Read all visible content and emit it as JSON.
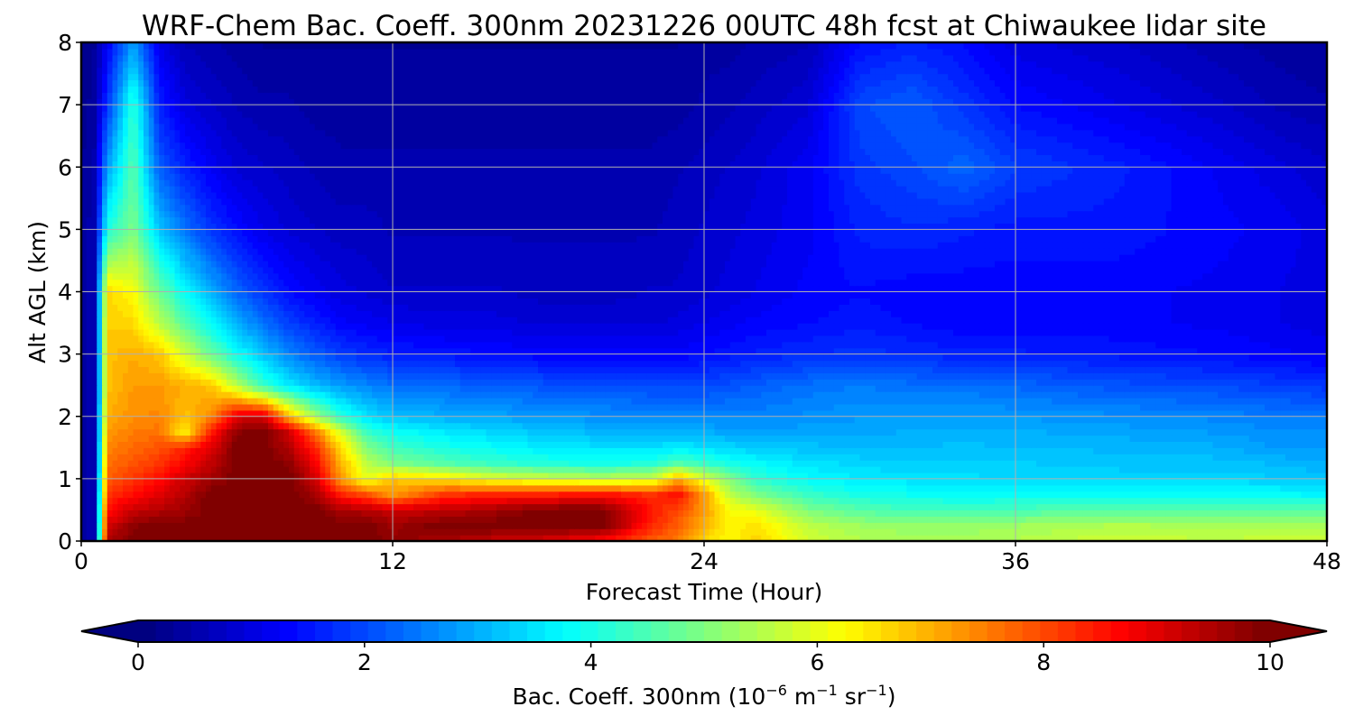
{
  "chart_data": {
    "type": "heatmap",
    "title": "WRF-Chem Bac. Coeff. 300nm  20231226 00UTC 48h fcst at Chiwaukee lidar site",
    "xlabel": "Forecast Time (Hour)",
    "ylabel": "Alt AGL (km)",
    "x_ticks": [
      0,
      12,
      24,
      36,
      48
    ],
    "y_ticks": [
      0,
      1,
      2,
      3,
      4,
      5,
      6,
      7,
      8
    ],
    "xlim": [
      0,
      48
    ],
    "ylim": [
      0,
      8
    ],
    "grid": true,
    "colorbar": {
      "label_main": "Bac. Coeff. 300nm  (10",
      "label_exp1": "−6",
      "label_mid": " m",
      "label_exp2": "−1",
      "label_mid2": " sr",
      "label_exp3": "−1",
      "label_end": ")",
      "ticks": [
        0,
        2,
        4,
        6,
        8,
        10
      ],
      "range": [
        0,
        10
      ],
      "extend": "both",
      "colormap": "jet",
      "orientation": "horizontal"
    },
    "x": [
      0,
      0.5,
      1,
      2,
      3,
      4,
      5,
      6,
      7,
      8,
      9,
      10,
      11,
      12,
      14,
      16,
      18,
      20,
      22,
      23,
      24,
      25,
      26,
      28,
      30,
      32,
      34,
      36,
      40,
      44,
      46,
      48
    ],
    "y": [
      0,
      0.25,
      0.5,
      0.75,
      1,
      1.25,
      1.5,
      1.75,
      2,
      2.5,
      3,
      3.5,
      4,
      5,
      6,
      7,
      8
    ],
    "z": [
      [
        0.3,
        0.6,
        9.5,
        10.0,
        10.0,
        10.0,
        10.0,
        10.0,
        10.0,
        10.0,
        10.0,
        10.0,
        10.0,
        9.8,
        9.5,
        9.2,
        9.0,
        8.6,
        7.8,
        7.5,
        6.6,
        6.2,
        6.7,
        5.8,
        5.5,
        5.4,
        5.4,
        5.5,
        5.8,
        5.6,
        5.8,
        5.8
      ],
      [
        0.3,
        0.6,
        9.0,
        9.8,
        10.0,
        10.0,
        10.0,
        10.0,
        10.0,
        10.0,
        10.0,
        10.0,
        10.0,
        9.6,
        10.0,
        10.0,
        10.0,
        10.0,
        8.3,
        7.8,
        7.0,
        6.3,
        6.5,
        5.6,
        5.3,
        5.2,
        5.2,
        5.3,
        5.5,
        5.4,
        5.4,
        5.4
      ],
      [
        0.3,
        0.6,
        8.6,
        9.2,
        9.4,
        9.6,
        10.0,
        10.0,
        10.0,
        10.0,
        10.0,
        9.5,
        9.4,
        9.2,
        9.3,
        9.6,
        10.0,
        10.0,
        8.5,
        8.0,
        7.2,
        6.2,
        6.0,
        5.0,
        4.6,
        4.4,
        4.4,
        4.5,
        4.6,
        4.6,
        4.6,
        4.6
      ],
      [
        0.3,
        0.6,
        8.2,
        8.6,
        9.0,
        9.4,
        10.0,
        10.0,
        10.0,
        10.0,
        9.6,
        8.4,
        8.0,
        7.2,
        8.2,
        8.4,
        8.4,
        8.6,
        8.2,
        8.6,
        7.2,
        5.6,
        5.0,
        4.3,
        4.0,
        3.9,
        3.8,
        3.8,
        3.8,
        3.8,
        3.8,
        3.7
      ],
      [
        0.3,
        0.6,
        7.8,
        8.2,
        8.6,
        9.2,
        9.6,
        10.0,
        10.0,
        10.0,
        9.2,
        7.2,
        6.0,
        6.8,
        6.5,
        6.0,
        5.8,
        5.6,
        5.8,
        7.0,
        6.0,
        5.0,
        4.2,
        3.8,
        3.6,
        3.5,
        3.5,
        3.4,
        3.4,
        3.4,
        3.3,
        3.2
      ],
      [
        0.3,
        0.6,
        7.6,
        7.9,
        8.2,
        8.7,
        9.3,
        10.0,
        10.0,
        9.8,
        8.8,
        7.0,
        5.6,
        5.0,
        4.6,
        4.3,
        4.1,
        4.0,
        4.1,
        4.6,
        4.3,
        4.0,
        3.8,
        3.5,
        3.4,
        3.3,
        3.3,
        3.3,
        3.2,
        3.2,
        3.1,
        3.0
      ],
      [
        0.3,
        0.6,
        7.4,
        7.7,
        7.9,
        8.4,
        9.0,
        10.0,
        10.0,
        9.4,
        8.4,
        6.6,
        5.0,
        4.4,
        4.0,
        3.8,
        3.6,
        3.5,
        3.5,
        3.6,
        3.5,
        3.4,
        3.3,
        3.2,
        3.1,
        3.1,
        3.2,
        3.1,
        3.1,
        3.0,
        2.8,
        2.8
      ],
      [
        0.3,
        0.6,
        7.2,
        7.5,
        7.6,
        6.3,
        8.4,
        9.8,
        10.0,
        9.2,
        7.6,
        5.8,
        4.3,
        3.9,
        3.6,
        3.4,
        3.2,
        3.1,
        3.0,
        3.0,
        3.0,
        2.9,
        2.9,
        2.9,
        2.9,
        3.0,
        3.0,
        3.0,
        2.9,
        2.8,
        2.7,
        2.7
      ],
      [
        0.3,
        0.6,
        7.0,
        7.3,
        7.4,
        6.8,
        7.4,
        9.0,
        9.2,
        7.0,
        5.4,
        4.2,
        3.5,
        3.2,
        3.0,
        2.9,
        2.8,
        2.7,
        2.6,
        2.6,
        2.6,
        2.6,
        2.6,
        2.7,
        2.8,
        2.8,
        2.8,
        2.8,
        2.7,
        2.6,
        2.5,
        2.5
      ],
      [
        0.3,
        0.6,
        6.8,
        7.2,
        7.2,
        7.0,
        6.8,
        5.6,
        4.3,
        3.6,
        3.1,
        2.8,
        2.6,
        2.4,
        2.3,
        2.2,
        2.1,
        2.1,
        2.0,
        2.0,
        2.0,
        2.1,
        2.2,
        2.4,
        2.5,
        2.4,
        2.4,
        2.3,
        2.1,
        2.0,
        1.9,
        1.8
      ],
      [
        0.3,
        0.6,
        6.8,
        7.0,
        6.8,
        5.8,
        4.8,
        3.9,
        3.2,
        2.6,
        2.2,
        1.9,
        1.7,
        1.6,
        1.5,
        1.4,
        1.3,
        1.3,
        1.3,
        1.3,
        1.4,
        1.5,
        1.6,
        1.7,
        1.8,
        1.7,
        1.6,
        1.6,
        1.5,
        1.4,
        1.3,
        1.2
      ],
      [
        0.3,
        0.6,
        6.7,
        6.6,
        5.6,
        4.6,
        3.8,
        3.0,
        2.4,
        1.9,
        1.6,
        1.3,
        1.2,
        1.1,
        1.0,
        1.0,
        0.9,
        0.9,
        0.9,
        1.0,
        1.1,
        1.2,
        1.3,
        1.4,
        1.5,
        1.4,
        1.3,
        1.3,
        1.3,
        1.2,
        1.1,
        1.0
      ],
      [
        0.3,
        0.6,
        6.6,
        6.2,
        4.8,
        3.8,
        3.0,
        2.3,
        1.8,
        1.4,
        1.2,
        1.0,
        0.9,
        0.8,
        0.8,
        0.8,
        0.7,
        0.7,
        0.8,
        0.8,
        0.9,
        1.0,
        1.1,
        1.3,
        1.4,
        1.3,
        1.3,
        1.3,
        1.3,
        1.2,
        1.1,
        1.0
      ],
      [
        0.3,
        0.6,
        4.0,
        5.0,
        3.2,
        2.4,
        1.8,
        1.4,
        1.1,
        0.9,
        0.8,
        0.7,
        0.7,
        0.6,
        0.6,
        0.6,
        0.6,
        0.6,
        0.6,
        0.7,
        0.8,
        0.9,
        1.0,
        1.2,
        1.6,
        1.7,
        1.6,
        1.5,
        1.5,
        1.3,
        1.2,
        1.0
      ],
      [
        0.3,
        0.5,
        2.8,
        4.6,
        2.2,
        1.6,
        1.2,
        0.9,
        0.8,
        0.7,
        0.6,
        0.5,
        0.5,
        0.5,
        0.5,
        0.5,
        0.5,
        0.5,
        0.5,
        0.6,
        0.7,
        0.8,
        0.9,
        1.2,
        1.8,
        2.0,
        2.3,
        1.9,
        1.6,
        1.2,
        1.0,
        0.8
      ],
      [
        0.2,
        0.4,
        1.8,
        4.2,
        1.6,
        1.0,
        0.8,
        0.6,
        0.5,
        0.5,
        0.4,
        0.4,
        0.4,
        0.4,
        0.4,
        0.4,
        0.4,
        0.4,
        0.4,
        0.4,
        0.5,
        0.6,
        0.7,
        0.9,
        2.0,
        2.2,
        1.8,
        1.4,
        1.1,
        0.8,
        0.6,
        0.5
      ],
      [
        0.2,
        0.3,
        1.2,
        2.8,
        1.1,
        0.6,
        0.5,
        0.4,
        0.3,
        0.3,
        0.3,
        0.3,
        0.3,
        0.3,
        0.3,
        0.3,
        0.3,
        0.3,
        0.3,
        0.3,
        0.4,
        0.4,
        0.5,
        0.6,
        1.4,
        1.6,
        1.4,
        1.0,
        0.8,
        0.5,
        0.4,
        0.3
      ]
    ]
  }
}
